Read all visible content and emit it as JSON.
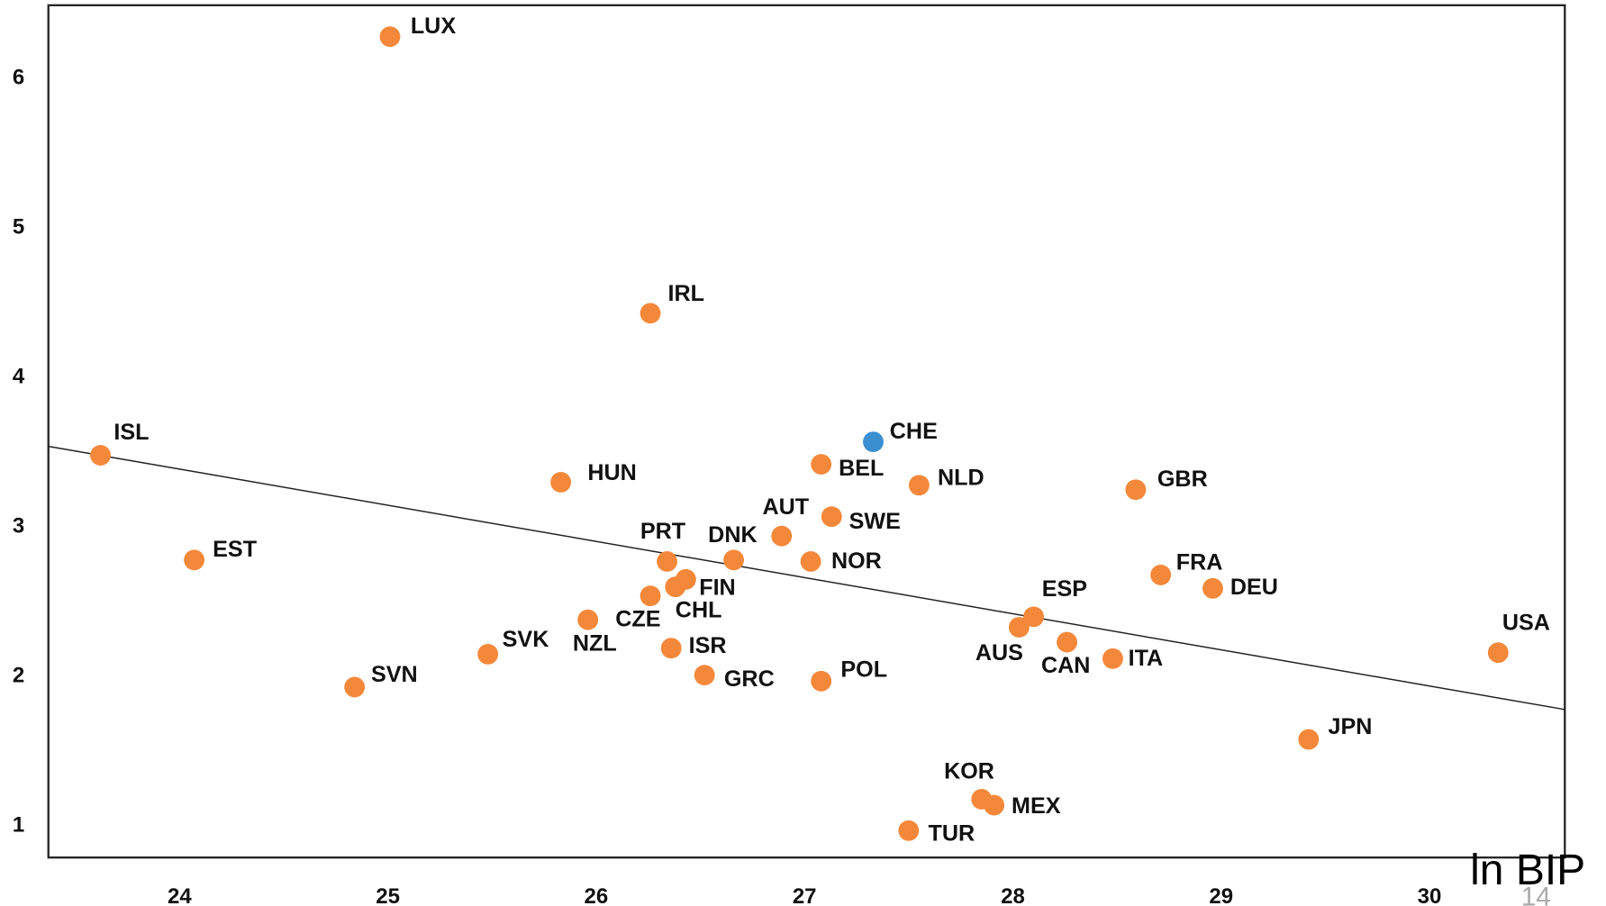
{
  "chart_data": {
    "type": "scatter",
    "labels": [
      "LUX",
      "IRL",
      "ISL",
      "HUN",
      "CHE",
      "BEL",
      "NLD",
      "GBR",
      "AUT",
      "SWE",
      "EST",
      "PRT",
      "DNK",
      "NOR",
      "FIN",
      "CHL",
      "CZE",
      "FRA",
      "DEU",
      "ESP",
      "AUS",
      "CAN",
      "ITA",
      "USA",
      "NZL",
      "SVK",
      "ISR",
      "GRC",
      "POL",
      "SVN",
      "JPN",
      "KOR",
      "MEX",
      "TUR"
    ],
    "x": [
      25.01,
      26.26,
      23.62,
      25.83,
      27.33,
      27.08,
      27.55,
      28.59,
      26.89,
      27.13,
      24.07,
      26.34,
      26.66,
      27.03,
      26.43,
      26.38,
      26.26,
      28.71,
      28.96,
      28.1,
      28.03,
      28.26,
      28.48,
      30.33,
      25.96,
      25.48,
      26.36,
      26.52,
      27.08,
      24.84,
      29.42,
      27.85,
      27.91,
      27.5
    ],
    "y": [
      6.28,
      4.43,
      3.48,
      3.3,
      3.57,
      3.42,
      3.28,
      3.25,
      2.94,
      3.07,
      2.78,
      2.77,
      2.78,
      2.77,
      2.65,
      2.6,
      2.54,
      2.68,
      2.59,
      2.4,
      2.33,
      2.23,
      2.12,
      2.16,
      2.38,
      2.15,
      2.19,
      2.01,
      1.97,
      1.93,
      1.58,
      1.18,
      1.14,
      0.97
    ],
    "colors": [
      "#f4883a",
      "#f4883a",
      "#f4883a",
      "#f4883a",
      "#3a8fd0",
      "#f4883a",
      "#f4883a",
      "#f4883a",
      "#f4883a",
      "#f4883a",
      "#f4883a",
      "#f4883a",
      "#f4883a",
      "#f4883a",
      "#f4883a",
      "#f4883a",
      "#f4883a",
      "#f4883a",
      "#f4883a",
      "#f4883a",
      "#f4883a",
      "#f4883a",
      "#f4883a",
      "#f4883a",
      "#f4883a",
      "#f4883a",
      "#f4883a",
      "#f4883a",
      "#f4883a",
      "#f4883a",
      "#f4883a",
      "#f4883a",
      "#f4883a",
      "#f4883a"
    ],
    "trend": {
      "x": [
        23.37,
        30.65
      ],
      "y": [
        3.54,
        1.78
      ]
    },
    "xlim": [
      23.37,
      30.65
    ],
    "ylim": [
      0.79,
      6.49
    ],
    "xticks": [
      24,
      25,
      26,
      27,
      28,
      29,
      30
    ],
    "yticks": [
      1,
      2,
      3,
      4,
      5,
      6
    ],
    "grid": false,
    "annotation": "ln BIP",
    "page_number": "14"
  }
}
